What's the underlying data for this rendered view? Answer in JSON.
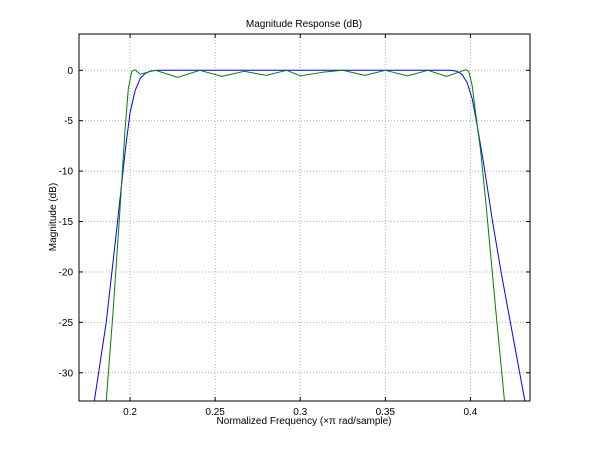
{
  "chart_data": {
    "type": "line",
    "title": "Magnitude Response (dB)",
    "xlabel": "Normalized Frequency (×π rad/sample)",
    "ylabel": "Magnitude (dB)",
    "xlim": [
      0.17,
      0.435
    ],
    "ylim": [
      -32.8,
      3.6
    ],
    "xticks": [
      0.2,
      0.25,
      0.3,
      0.35,
      0.4
    ],
    "xtick_labels": [
      "0.2",
      "0.25",
      "0.3",
      "0.35",
      "0.4"
    ],
    "yticks": [
      0,
      -5,
      -10,
      -15,
      -20,
      -25,
      -30
    ],
    "ytick_labels": [
      "0",
      "-5",
      "-10",
      "-15",
      "-20",
      "-25",
      "-30"
    ],
    "grid": true,
    "series": [
      {
        "color": "#0000ff",
        "points": [
          [
            0.179,
            -32.8
          ],
          [
            0.186,
            -25.0
          ],
          [
            0.192,
            -16.0
          ],
          [
            0.1975,
            -7.5
          ],
          [
            0.2,
            -4.2
          ],
          [
            0.203,
            -2.0
          ],
          [
            0.206,
            -0.8
          ],
          [
            0.209,
            -0.3
          ],
          [
            0.212,
            -0.08
          ],
          [
            0.216,
            0
          ],
          [
            0.25,
            0
          ],
          [
            0.3,
            0
          ],
          [
            0.35,
            0
          ],
          [
            0.388,
            0
          ],
          [
            0.392,
            -0.1
          ],
          [
            0.395,
            -0.4
          ],
          [
            0.398,
            -1.2
          ],
          [
            0.401,
            -2.8
          ],
          [
            0.404,
            -5.5
          ],
          [
            0.408,
            -9.5
          ],
          [
            0.413,
            -15.0
          ],
          [
            0.418,
            -20.0
          ],
          [
            0.424,
            -25.5
          ],
          [
            0.432,
            -32.8
          ]
        ]
      },
      {
        "color": "#008000",
        "points": [
          [
            0.186,
            -32.8
          ],
          [
            0.19,
            -24.0
          ],
          [
            0.194,
            -14.0
          ],
          [
            0.197,
            -6.0
          ],
          [
            0.199,
            -1.8
          ],
          [
            0.201,
            -0.1
          ],
          [
            0.203,
            0.05
          ],
          [
            0.206,
            -0.4
          ],
          [
            0.21,
            -0.2
          ],
          [
            0.215,
            0
          ],
          [
            0.228,
            -0.7
          ],
          [
            0.241,
            0
          ],
          [
            0.254,
            -0.6
          ],
          [
            0.267,
            -0.1
          ],
          [
            0.28,
            -0.5
          ],
          [
            0.292,
            0
          ],
          [
            0.3,
            -0.55
          ],
          [
            0.313,
            -0.2
          ],
          [
            0.325,
            0
          ],
          [
            0.338,
            -0.5
          ],
          [
            0.35,
            0
          ],
          [
            0.363,
            -0.55
          ],
          [
            0.375,
            0
          ],
          [
            0.386,
            -0.6
          ],
          [
            0.393,
            -0.2
          ],
          [
            0.397,
            0.05
          ],
          [
            0.399,
            -0.1
          ],
          [
            0.401,
            -1.5
          ],
          [
            0.403,
            -4.2
          ],
          [
            0.406,
            -8.0
          ],
          [
            0.409,
            -13.0
          ],
          [
            0.412,
            -18.5
          ],
          [
            0.415,
            -24.0
          ],
          [
            0.42,
            -32.8
          ]
        ]
      }
    ]
  }
}
